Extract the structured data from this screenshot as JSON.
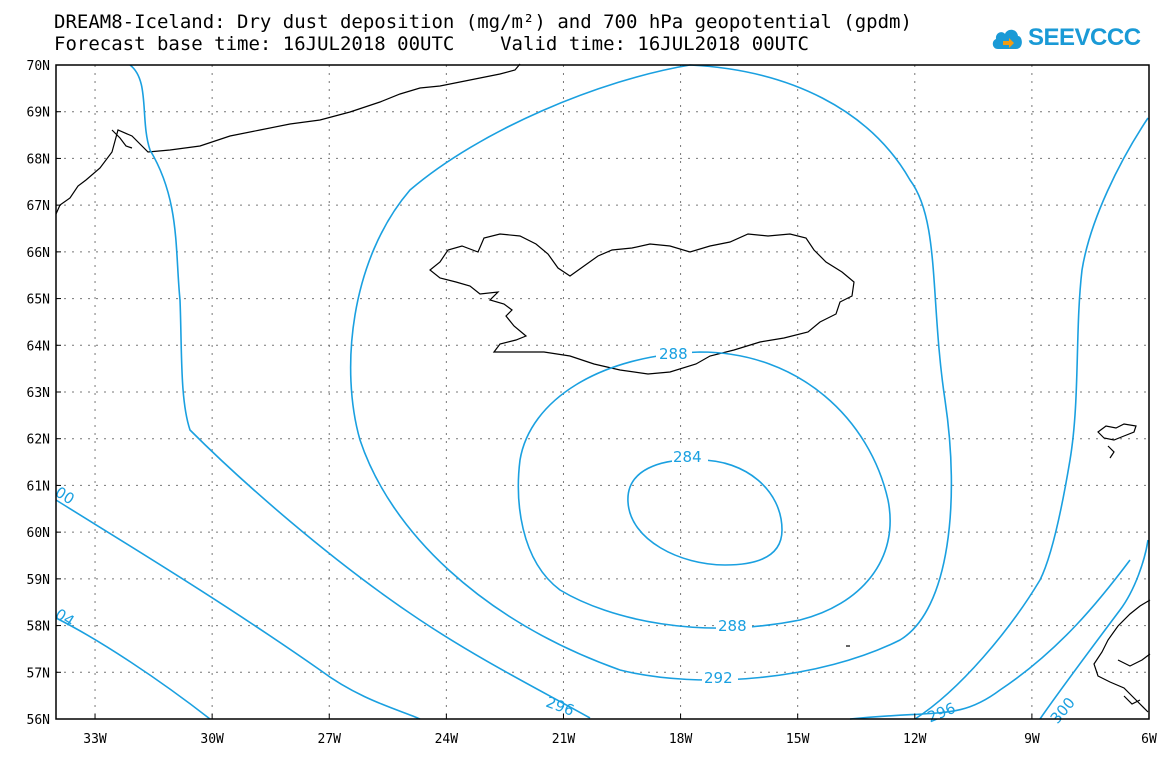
{
  "header": {
    "title_line1": "DREAM8-Iceland: Dry dust deposition (mg/m²) and 700 hPa geopotential (gpdm)",
    "title_line2": "Forecast base time: 16JUL2018 00UTC    Valid time: 16JUL2018 00UTC",
    "logo_text": "SEEVCCC",
    "logo_icon": "cloud-icon"
  },
  "map": {
    "lat_labels": [
      "70N",
      "69N",
      "68N",
      "67N",
      "66N",
      "65N",
      "64N",
      "63N",
      "62N",
      "61N",
      "60N",
      "59N",
      "58N",
      "57N",
      "56N"
    ],
    "lon_labels": [
      "33W",
      "30W",
      "27W",
      "24W",
      "21W",
      "18W",
      "15W",
      "12W",
      "9W",
      "6W"
    ],
    "contour_labels": [
      "288",
      "284",
      "288",
      "292",
      "296",
      "296",
      "300",
      "00",
      "04"
    ],
    "contour_color": "#1aa0e0",
    "coast_color": "#000000",
    "grid": true
  }
}
